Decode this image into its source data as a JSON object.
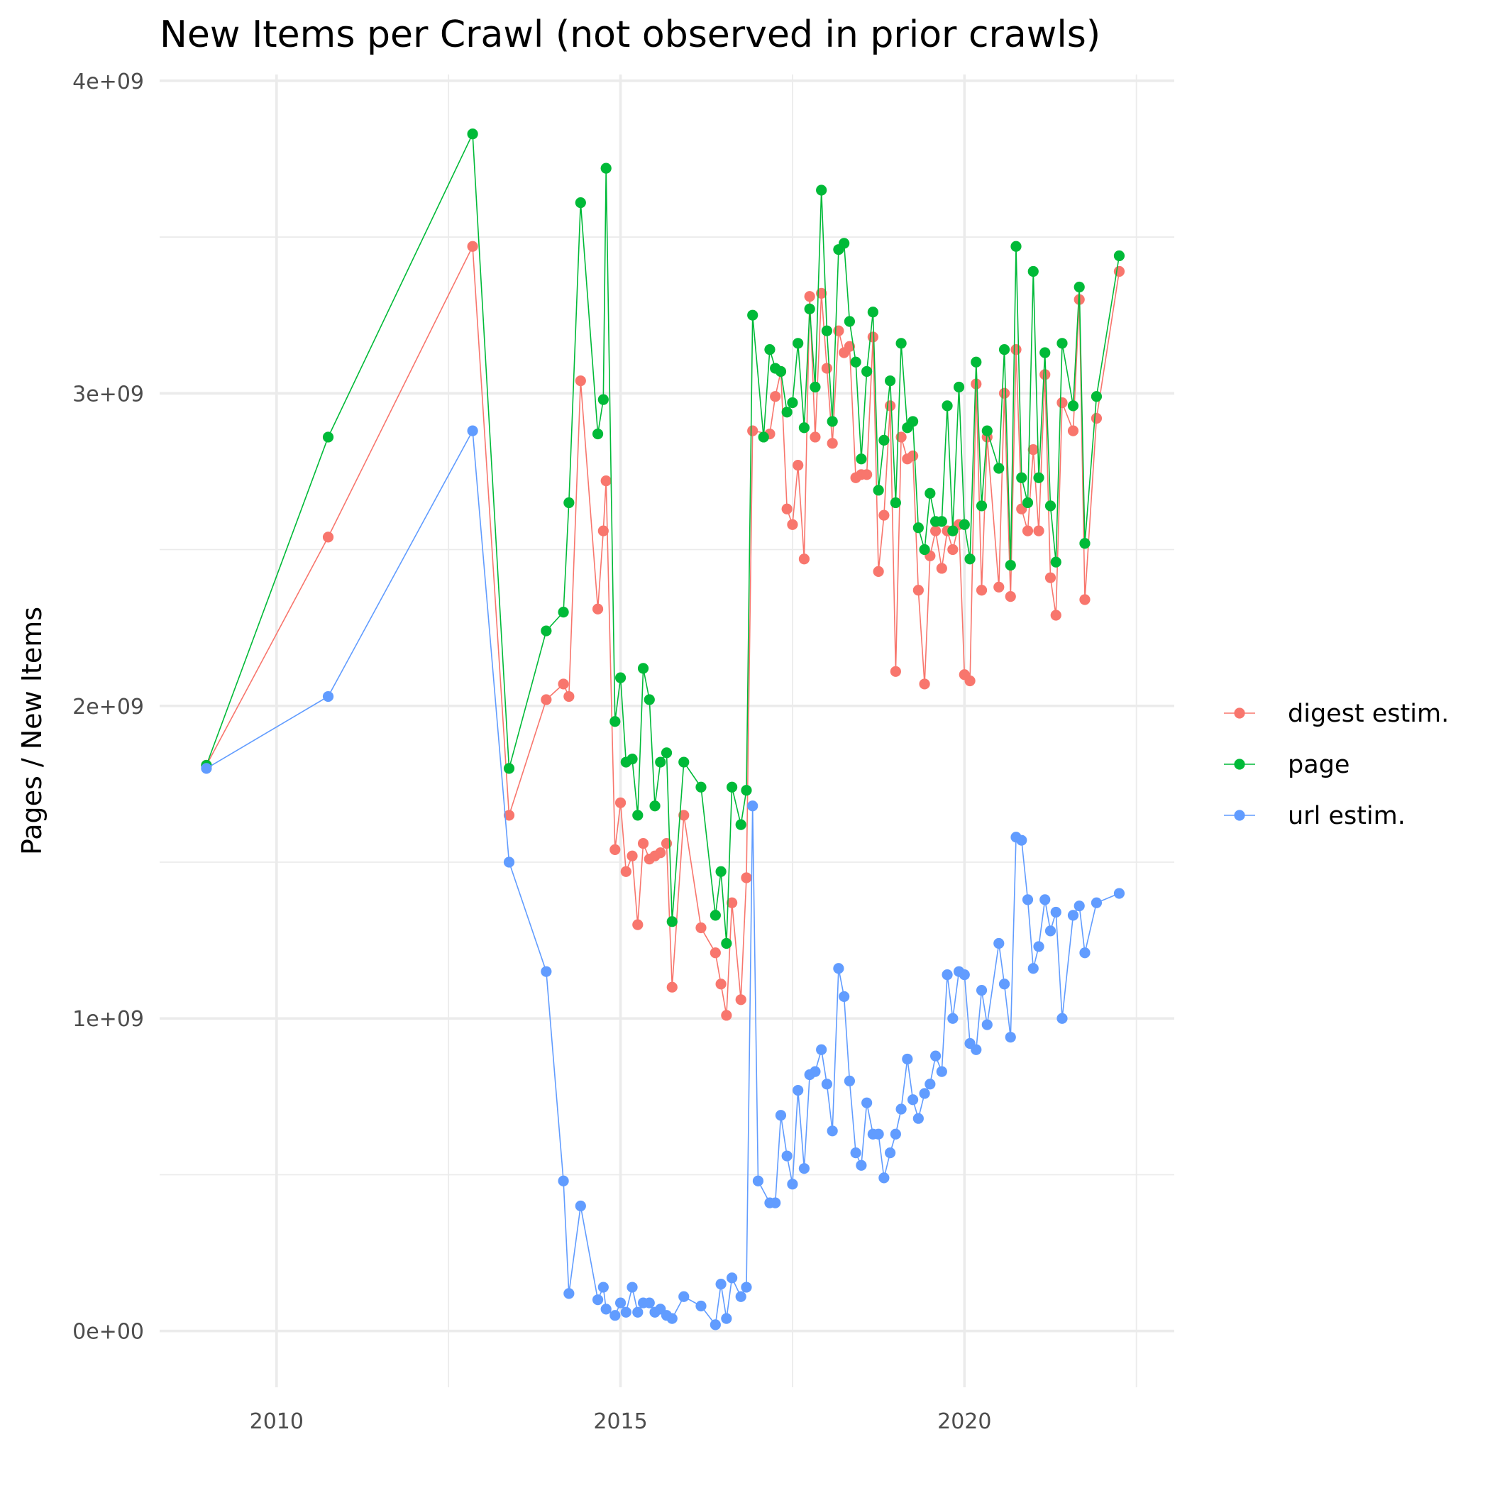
{
  "chart_data": {
    "type": "line",
    "title": "New Items per Crawl (not observed in prior crawls)",
    "xlabel": "",
    "ylabel": "Pages / New Items",
    "xlim": [
      2008.3,
      2023.05
    ],
    "ylim": [
      -180000000,
      4020000000
    ],
    "x_ticks": [
      2010,
      2015,
      2020
    ],
    "x_tick_labels": [
      "2010",
      "2015",
      "2020"
    ],
    "y_ticks": [
      0,
      1000000000,
      2000000000,
      3000000000,
      4000000000
    ],
    "y_tick_labels": [
      "0e+00",
      "1e+09",
      "2e+09",
      "3e+09",
      "4e+09"
    ],
    "grid": true,
    "legend_position": "right",
    "markers": true,
    "series": [
      {
        "name": "digest estim.",
        "color": "#F8766D",
        "points": [
          [
            2008.98,
            1810000000.0
          ],
          [
            2010.75,
            2540000000.0
          ],
          [
            2012.85,
            3470000000.0
          ],
          [
            2013.38,
            1650000000.0
          ],
          [
            2013.92,
            2020000000.0
          ],
          [
            2014.17,
            2070000000.0
          ],
          [
            2014.25,
            2030000000.0
          ],
          [
            2014.42,
            3040000000.0
          ],
          [
            2014.67,
            2310000000.0
          ],
          [
            2014.75,
            2560000000.0
          ],
          [
            2014.79,
            2720000000.0
          ],
          [
            2014.92,
            1540000000.0
          ],
          [
            2015.0,
            1690000000.0
          ],
          [
            2015.08,
            1470000000.0
          ],
          [
            2015.17,
            1520000000.0
          ],
          [
            2015.25,
            1300000000.0
          ],
          [
            2015.33,
            1560000000.0
          ],
          [
            2015.42,
            1510000000.0
          ],
          [
            2015.5,
            1520000000.0
          ],
          [
            2015.58,
            1530000000.0
          ],
          [
            2015.67,
            1560000000.0
          ],
          [
            2015.75,
            1100000000.0
          ],
          [
            2015.92,
            1650000000.0
          ],
          [
            2016.17,
            1290000000.0
          ],
          [
            2016.38,
            1210000000.0
          ],
          [
            2016.46,
            1110000000.0
          ],
          [
            2016.54,
            1010000000.0
          ],
          [
            2016.62,
            1370000000.0
          ],
          [
            2016.75,
            1060000000.0
          ],
          [
            2016.83,
            1450000000.0
          ],
          [
            2016.92,
            2880000000.0
          ],
          [
            2017.17,
            2870000000.0
          ],
          [
            2017.25,
            2990000000.0
          ],
          [
            2017.33,
            3070000000.0
          ],
          [
            2017.42,
            2630000000.0
          ],
          [
            2017.5,
            2580000000.0
          ],
          [
            2017.58,
            2770000000.0
          ],
          [
            2017.67,
            2470000000.0
          ],
          [
            2017.75,
            3310000000.0
          ],
          [
            2017.83,
            2860000000.0
          ],
          [
            2017.92,
            3320000000.0
          ],
          [
            2018.0,
            3080000000.0
          ],
          [
            2018.08,
            2840000000.0
          ],
          [
            2018.17,
            3200000000.0
          ],
          [
            2018.25,
            3130000000.0
          ],
          [
            2018.33,
            3150000000.0
          ],
          [
            2018.42,
            2730000000.0
          ],
          [
            2018.5,
            2740000000.0
          ],
          [
            2018.58,
            2740000000.0
          ],
          [
            2018.67,
            3180000000.0
          ],
          [
            2018.75,
            2430000000.0
          ],
          [
            2018.83,
            2610000000.0
          ],
          [
            2018.92,
            2960000000.0
          ],
          [
            2019.0,
            2110000000.0
          ],
          [
            2019.08,
            2860000000.0
          ],
          [
            2019.17,
            2790000000.0
          ],
          [
            2019.25,
            2800000000.0
          ],
          [
            2019.33,
            2370000000.0
          ],
          [
            2019.42,
            2070000000.0
          ],
          [
            2019.5,
            2480000000.0
          ],
          [
            2019.58,
            2560000000.0
          ],
          [
            2019.67,
            2440000000.0
          ],
          [
            2019.75,
            2560000000.0
          ],
          [
            2019.83,
            2500000000.0
          ],
          [
            2019.92,
            2580000000.0
          ],
          [
            2020.0,
            2100000000.0
          ],
          [
            2020.08,
            2080000000.0
          ],
          [
            2020.17,
            3030000000.0
          ],
          [
            2020.25,
            2370000000.0
          ],
          [
            2020.33,
            2860000000.0
          ],
          [
            2020.5,
            2380000000.0
          ],
          [
            2020.58,
            3000000000.0
          ],
          [
            2020.67,
            2350000000.0
          ],
          [
            2020.75,
            3140000000.0
          ],
          [
            2020.83,
            2630000000.0
          ],
          [
            2020.92,
            2560000000.0
          ],
          [
            2021.0,
            2820000000.0
          ],
          [
            2021.08,
            2560000000.0
          ],
          [
            2021.17,
            3060000000.0
          ],
          [
            2021.25,
            2410000000.0
          ],
          [
            2021.33,
            2290000000.0
          ],
          [
            2021.42,
            2970000000.0
          ],
          [
            2021.58,
            2880000000.0
          ],
          [
            2021.67,
            3300000000.0
          ],
          [
            2021.75,
            2340000000.0
          ],
          [
            2021.92,
            2920000000.0
          ],
          [
            2022.25,
            3390000000.0
          ]
        ]
      },
      {
        "name": "page",
        "color": "#00BA38",
        "points": [
          [
            2008.98,
            1810000000.0
          ],
          [
            2010.75,
            2860000000.0
          ],
          [
            2012.85,
            3830000000.0
          ],
          [
            2013.38,
            1800000000.0
          ],
          [
            2013.92,
            2240000000.0
          ],
          [
            2014.17,
            2300000000.0
          ],
          [
            2014.25,
            2650000000.0
          ],
          [
            2014.42,
            3610000000.0
          ],
          [
            2014.67,
            2870000000.0
          ],
          [
            2014.75,
            2980000000.0
          ],
          [
            2014.79,
            3720000000.0
          ],
          [
            2014.92,
            1950000000.0
          ],
          [
            2015.0,
            2090000000.0
          ],
          [
            2015.08,
            1820000000.0
          ],
          [
            2015.17,
            1830000000.0
          ],
          [
            2015.25,
            1650000000.0
          ],
          [
            2015.33,
            2120000000.0
          ],
          [
            2015.42,
            2020000000.0
          ],
          [
            2015.5,
            1680000000.0
          ],
          [
            2015.58,
            1820000000.0
          ],
          [
            2015.67,
            1850000000.0
          ],
          [
            2015.75,
            1310000000.0
          ],
          [
            2015.92,
            1820000000.0
          ],
          [
            2016.17,
            1740000000.0
          ],
          [
            2016.38,
            1330000000.0
          ],
          [
            2016.46,
            1470000000.0
          ],
          [
            2016.54,
            1240000000.0
          ],
          [
            2016.62,
            1740000000.0
          ],
          [
            2016.75,
            1620000000.0
          ],
          [
            2016.83,
            1730000000.0
          ],
          [
            2016.92,
            3250000000.0
          ],
          [
            2017.08,
            2860000000.0
          ],
          [
            2017.17,
            3140000000.0
          ],
          [
            2017.25,
            3080000000.0
          ],
          [
            2017.33,
            3070000000.0
          ],
          [
            2017.42,
            2940000000.0
          ],
          [
            2017.5,
            2970000000.0
          ],
          [
            2017.58,
            3160000000.0
          ],
          [
            2017.67,
            2890000000.0
          ],
          [
            2017.75,
            3270000000.0
          ],
          [
            2017.83,
            3020000000.0
          ],
          [
            2017.92,
            3650000000.0
          ],
          [
            2018.0,
            3200000000.0
          ],
          [
            2018.08,
            2910000000.0
          ],
          [
            2018.17,
            3460000000.0
          ],
          [
            2018.25,
            3480000000.0
          ],
          [
            2018.33,
            3230000000.0
          ],
          [
            2018.42,
            3100000000.0
          ],
          [
            2018.5,
            2790000000.0
          ],
          [
            2018.58,
            3070000000.0
          ],
          [
            2018.67,
            3260000000.0
          ],
          [
            2018.75,
            2690000000.0
          ],
          [
            2018.83,
            2850000000.0
          ],
          [
            2018.92,
            3040000000.0
          ],
          [
            2019.0,
            2650000000.0
          ],
          [
            2019.08,
            3160000000.0
          ],
          [
            2019.17,
            2890000000.0
          ],
          [
            2019.25,
            2910000000.0
          ],
          [
            2019.33,
            2570000000.0
          ],
          [
            2019.42,
            2500000000.0
          ],
          [
            2019.5,
            2680000000.0
          ],
          [
            2019.58,
            2590000000.0
          ],
          [
            2019.67,
            2590000000.0
          ],
          [
            2019.75,
            2960000000.0
          ],
          [
            2019.83,
            2560000000.0
          ],
          [
            2019.92,
            3020000000.0
          ],
          [
            2020.0,
            2580000000.0
          ],
          [
            2020.08,
            2470000000.0
          ],
          [
            2020.17,
            3100000000.0
          ],
          [
            2020.25,
            2640000000.0
          ],
          [
            2020.33,
            2880000000.0
          ],
          [
            2020.5,
            2760000000.0
          ],
          [
            2020.58,
            3140000000.0
          ],
          [
            2020.67,
            2450000000.0
          ],
          [
            2020.75,
            3470000000.0
          ],
          [
            2020.83,
            2730000000.0
          ],
          [
            2020.92,
            2650000000.0
          ],
          [
            2021.0,
            3390000000.0
          ],
          [
            2021.08,
            2730000000.0
          ],
          [
            2021.17,
            3130000000.0
          ],
          [
            2021.25,
            2640000000.0
          ],
          [
            2021.33,
            2460000000.0
          ],
          [
            2021.42,
            3160000000.0
          ],
          [
            2021.58,
            2960000000.0
          ],
          [
            2021.67,
            3340000000.0
          ],
          [
            2021.75,
            2520000000.0
          ],
          [
            2021.92,
            2990000000.0
          ],
          [
            2022.25,
            3440000000.0
          ]
        ]
      },
      {
        "name": "url estim.",
        "color": "#619CFF",
        "points": [
          [
            2008.98,
            1800000000.0
          ],
          [
            2010.75,
            2030000000.0
          ],
          [
            2012.85,
            2880000000.0
          ],
          [
            2013.38,
            1500000000.0
          ],
          [
            2013.92,
            1150000000.0
          ],
          [
            2014.17,
            480000000.0
          ],
          [
            2014.25,
            120000000.0
          ],
          [
            2014.42,
            400000000.0
          ],
          [
            2014.67,
            100000000.0
          ],
          [
            2014.75,
            140000000.0
          ],
          [
            2014.79,
            70000000.0
          ],
          [
            2014.92,
            50000000.0
          ],
          [
            2015.0,
            90000000.0
          ],
          [
            2015.08,
            60000000.0
          ],
          [
            2015.17,
            140000000.0
          ],
          [
            2015.25,
            60000000.0
          ],
          [
            2015.33,
            90000000.0
          ],
          [
            2015.42,
            90000000.0
          ],
          [
            2015.5,
            60000000.0
          ],
          [
            2015.58,
            70000000.0
          ],
          [
            2015.67,
            50000000.0
          ],
          [
            2015.75,
            40000000.0
          ],
          [
            2015.92,
            110000000.0
          ],
          [
            2016.17,
            80000000.0
          ],
          [
            2016.38,
            20000000.0
          ],
          [
            2016.46,
            150000000.0
          ],
          [
            2016.54,
            40000000.0
          ],
          [
            2016.62,
            170000000.0
          ],
          [
            2016.75,
            110000000.0
          ],
          [
            2016.83,
            140000000.0
          ],
          [
            2016.92,
            1680000000.0
          ],
          [
            2017.0,
            480000000.0
          ],
          [
            2017.17,
            410000000.0
          ],
          [
            2017.25,
            410000000.0
          ],
          [
            2017.33,
            690000000.0
          ],
          [
            2017.42,
            560000000.0
          ],
          [
            2017.5,
            470000000.0
          ],
          [
            2017.58,
            770000000.0
          ],
          [
            2017.67,
            520000000.0
          ],
          [
            2017.75,
            820000000.0
          ],
          [
            2017.83,
            830000000.0
          ],
          [
            2017.92,
            900000000.0
          ],
          [
            2018.0,
            790000000.0
          ],
          [
            2018.08,
            640000000.0
          ],
          [
            2018.17,
            1160000000.0
          ],
          [
            2018.25,
            1070000000.0
          ],
          [
            2018.33,
            800000000.0
          ],
          [
            2018.42,
            570000000.0
          ],
          [
            2018.5,
            530000000.0
          ],
          [
            2018.58,
            730000000.0
          ],
          [
            2018.67,
            630000000.0
          ],
          [
            2018.75,
            630000000.0
          ],
          [
            2018.83,
            490000000.0
          ],
          [
            2018.92,
            570000000.0
          ],
          [
            2019.0,
            630000000.0
          ],
          [
            2019.08,
            710000000.0
          ],
          [
            2019.17,
            870000000.0
          ],
          [
            2019.25,
            740000000.0
          ],
          [
            2019.33,
            680000000.0
          ],
          [
            2019.42,
            760000000.0
          ],
          [
            2019.5,
            790000000.0
          ],
          [
            2019.58,
            880000000.0
          ],
          [
            2019.67,
            830000000.0
          ],
          [
            2019.75,
            1140000000.0
          ],
          [
            2019.83,
            1000000000.0
          ],
          [
            2019.92,
            1150000000.0
          ],
          [
            2020.0,
            1140000000.0
          ],
          [
            2020.08,
            920000000.0
          ],
          [
            2020.17,
            900000000.0
          ],
          [
            2020.25,
            1090000000.0
          ],
          [
            2020.33,
            980000000.0
          ],
          [
            2020.5,
            1240000000.0
          ],
          [
            2020.58,
            1110000000.0
          ],
          [
            2020.67,
            940000000.0
          ],
          [
            2020.75,
            1580000000.0
          ],
          [
            2020.83,
            1570000000.0
          ],
          [
            2020.92,
            1380000000.0
          ],
          [
            2021.0,
            1160000000.0
          ],
          [
            2021.08,
            1230000000.0
          ],
          [
            2021.17,
            1380000000.0
          ],
          [
            2021.25,
            1280000000.0
          ],
          [
            2021.33,
            1340000000.0
          ],
          [
            2021.42,
            1000000000.0
          ],
          [
            2021.58,
            1330000000.0
          ],
          [
            2021.67,
            1360000000.0
          ],
          [
            2021.75,
            1210000000.0
          ],
          [
            2021.92,
            1370000000.0
          ],
          [
            2022.25,
            1400000000.0
          ]
        ]
      }
    ]
  }
}
